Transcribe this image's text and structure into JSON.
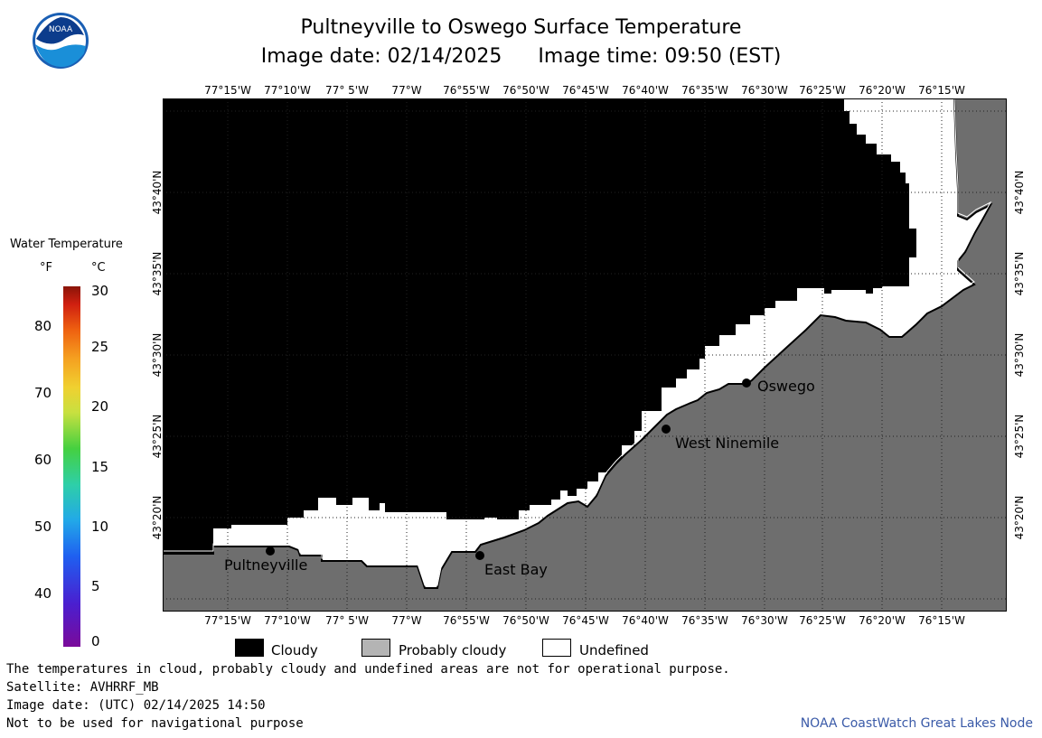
{
  "title": "Pultneyville to Oswego Surface Temperature",
  "image_date": "Image date: 02/14/2025",
  "image_time": "Image time: 09:50 (EST)",
  "logo_text": "NOAA",
  "legend": {
    "title": "Water Temperature",
    "unit_f": "°F",
    "unit_c": "°C",
    "fahrenheit_ticks": [
      "40",
      "50",
      "60",
      "70",
      "80"
    ],
    "celsius_ticks": [
      "0",
      "5",
      "10",
      "15",
      "20",
      "25",
      "30"
    ]
  },
  "lon_ticks": [
    "77°15'W",
    "77°10'W",
    "77° 5'W",
    "77°W",
    "76°55'W",
    "76°50'W",
    "76°45'W",
    "76°40'W",
    "76°35'W",
    "76°30'W",
    "76°25'W",
    "76°20'W",
    "76°15'W"
  ],
  "lat_ticks": [
    "43°20'N",
    "43°25'N",
    "43°30'N",
    "43°35'N",
    "43°40'N"
  ],
  "places": [
    "Pultneyville",
    "East Bay",
    "West Ninemile",
    "Oswego"
  ],
  "colors": {
    "cloudy": "#000000",
    "probably_cloudy": "#6e6e6e",
    "undefined": "#ffffff",
    "credit": "#3a5aa8"
  },
  "map_legend": {
    "cloudy": "Cloudy",
    "probably_cloudy": "Probably cloudy",
    "undefined": "Undefined"
  },
  "footer": {
    "line1": "The temperatures in cloud, probably cloudy and undefined areas are not for operational purpose.",
    "line2": "Satellite: AVHRRF_MB",
    "line3": "Image date: (UTC) 02/14/2025  14:50",
    "line4": "Not to be used for navigational purpose",
    "credit": "NOAA CoastWatch Great Lakes Node"
  }
}
